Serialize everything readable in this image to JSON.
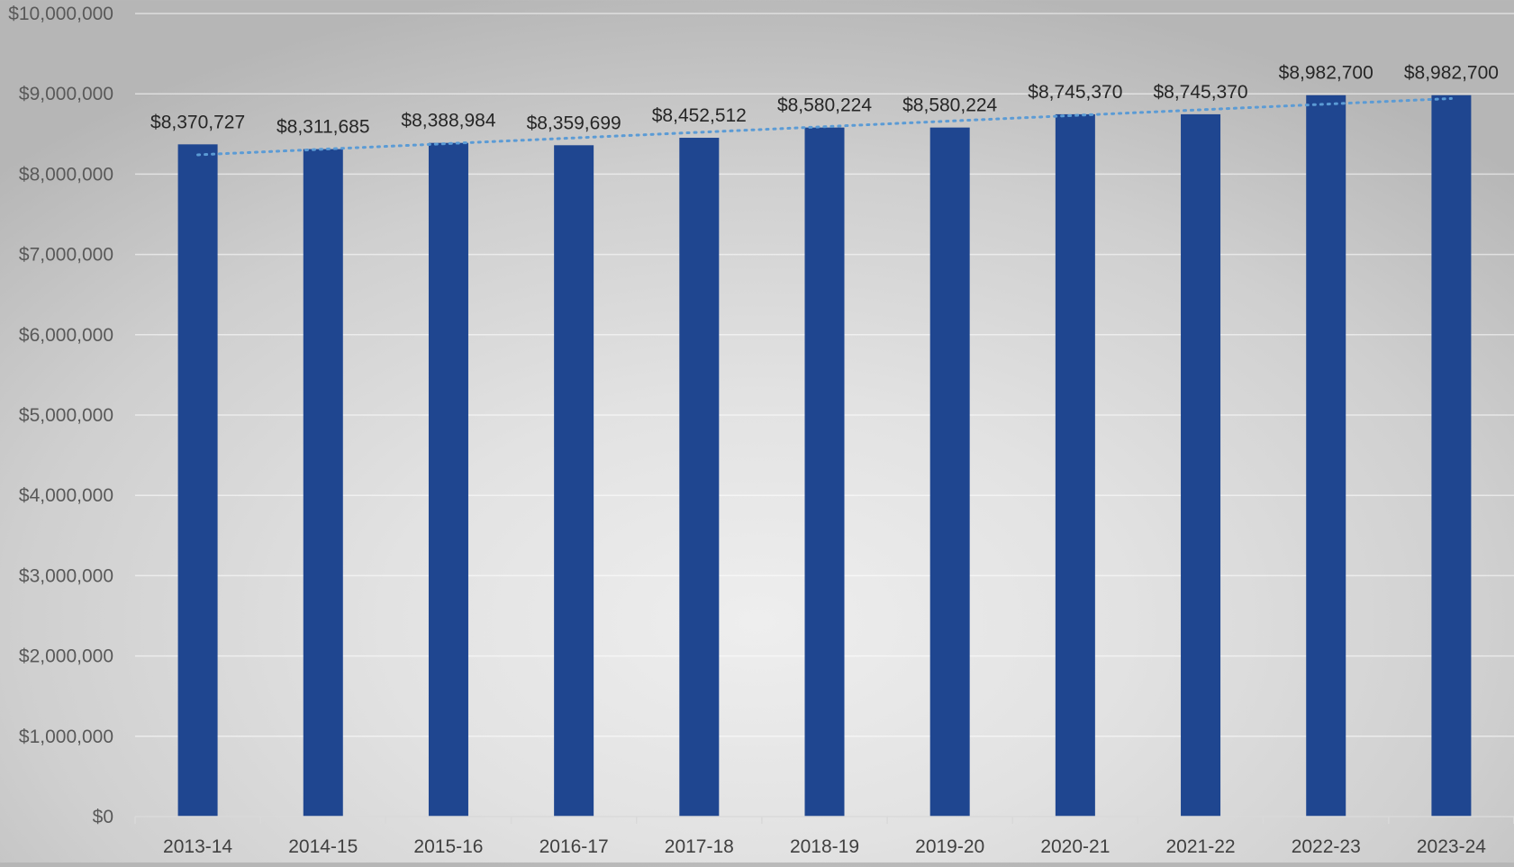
{
  "chart_data": {
    "type": "bar",
    "title": "",
    "xlabel": "",
    "ylabel": "",
    "categories": [
      "2013-14",
      "2014-15",
      "2015-16",
      "2016-17",
      "2017-18",
      "2018-19",
      "2019-20",
      "2020-21",
      "2021-22",
      "2022-23",
      "2023-24"
    ],
    "values": [
      8370727,
      8311685,
      8388984,
      8359699,
      8452512,
      8580224,
      8580224,
      8745370,
      8745370,
      8982700,
      8982700
    ],
    "data_labels": [
      "$8,370,727",
      "$8,311,685",
      "$8,388,984",
      "$8,359,699",
      "$8,452,512",
      "$8,580,224",
      "$8,580,224",
      "$8,745,370",
      "$8,745,370",
      "$8,982,700",
      "$8,982,700"
    ],
    "ylim": [
      0,
      10000000
    ],
    "y_ticks": [
      0,
      1000000,
      2000000,
      3000000,
      4000000,
      5000000,
      6000000,
      7000000,
      8000000,
      9000000,
      10000000
    ],
    "y_tick_labels": [
      "$0",
      "$1,000,000",
      "$2,000,000",
      "$3,000,000",
      "$4,000,000",
      "$5,000,000",
      "$6,000,000",
      "$7,000,000",
      "$8,000,000",
      "$9,000,000",
      "$10,000,000"
    ],
    "grid": true,
    "legend": "none",
    "trendline": {
      "type": "linear",
      "style": "dotted",
      "color": "#5b9bd5"
    },
    "bar_color": "#1f4690"
  }
}
